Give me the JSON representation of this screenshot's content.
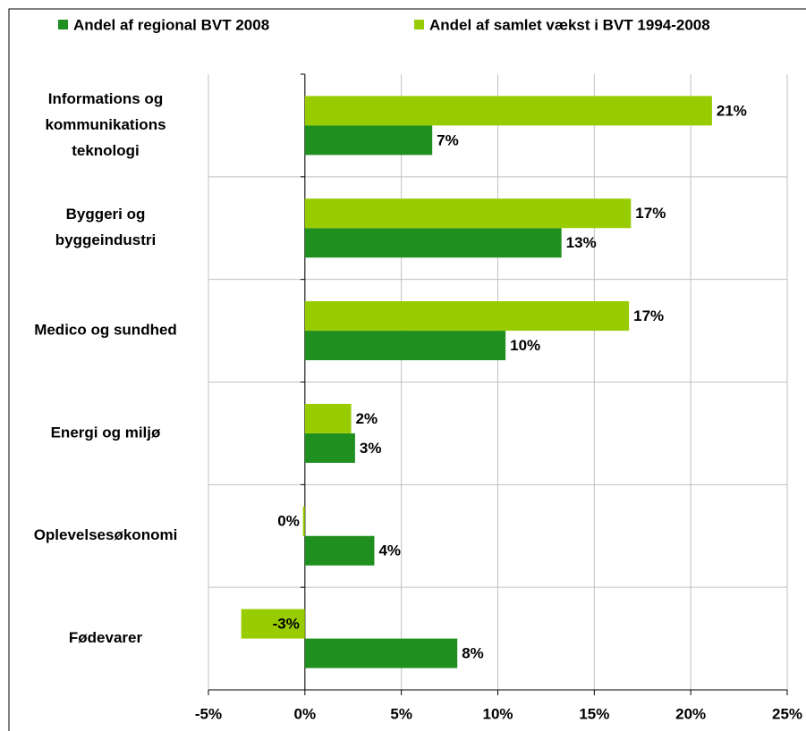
{
  "chart_data": {
    "type": "bar",
    "orientation": "horizontal",
    "categories": [
      [
        "Informations og",
        "kommunikations",
        "teknologi"
      ],
      [
        "Byggeri og",
        "byggeindustri"
      ],
      [
        "Medico og sundhed"
      ],
      [
        "Energi og miljø"
      ],
      [
        "Oplevelsesøkonomi"
      ],
      [
        "Fødevarer"
      ]
    ],
    "series": [
      {
        "name": "Andel af regional BVT 2008",
        "color": "#1f8f1f",
        "values": [
          6.6,
          13.3,
          10.4,
          2.6,
          3.6,
          7.9
        ],
        "value_labels": [
          "7%",
          "13%",
          "10%",
          "3%",
          "4%",
          "8%"
        ]
      },
      {
        "name": "Andel af samlet vækst i BVT 1994-2008",
        "color": "#99cc00",
        "values": [
          21.1,
          16.9,
          16.8,
          2.4,
          -0.1,
          -3.3
        ],
        "value_labels": [
          "21%",
          "17%",
          "17%",
          "2%",
          "0%",
          "-3%"
        ]
      }
    ],
    "xlim": [
      -5,
      25
    ],
    "xticks": [
      {
        "value": -5,
        "label": "-5%"
      },
      {
        "value": 0,
        "label": "0%"
      },
      {
        "value": 5,
        "label": "5%"
      },
      {
        "value": 10,
        "label": "10%"
      },
      {
        "value": 15,
        "label": "15%"
      },
      {
        "value": 20,
        "label": "20%"
      },
      {
        "value": 25,
        "label": "25%"
      }
    ],
    "grid": true,
    "legend": "top"
  }
}
